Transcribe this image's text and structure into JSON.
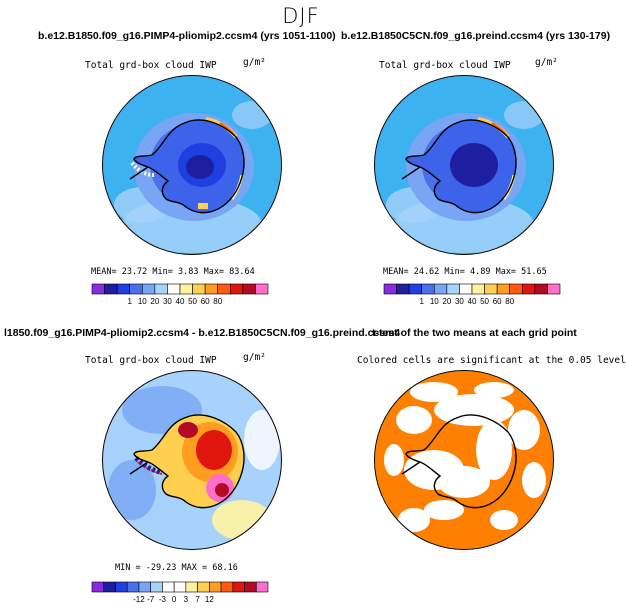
{
  "figure": {
    "title": "DJF"
  },
  "colors": {
    "ocean_bg": "#3db2f0",
    "land_low": "#1a3fe0",
    "tgrid_significant": "#ff7f00"
  },
  "panels": [
    {
      "id": "p1",
      "title": "b.e12.B1850.f09_g16.PIMP4-pliomip2.ccsm4 (yrs 1051-1100)",
      "left_label": "Total grd-box cloud IWP",
      "right_label": "g/m²",
      "stats": "MEAN=  23.72   Min=    3.83   Max=  83.64",
      "colorbar": "abs"
    },
    {
      "id": "p2",
      "title": "b.e12.B1850C5CN.f09_g16.preind.ccsm4 (yrs 130-179)",
      "left_label": "Total grd-box cloud IWP",
      "right_label": "g/m²",
      "stats": "MEAN=  24.62   Min=    4.89   Max=  51.65",
      "colorbar": "abs"
    },
    {
      "id": "p3",
      "title": "l1850.f09_g16.PIMP4-pliomip2.ccsm4 - b.e12.B1850C5CN.f09_g16.preind.ccsm4",
      "left_label": "Total grd-box cloud IWP",
      "right_label": "g/m²",
      "stats": "MIN = -29.23  MAX =   68.16",
      "colorbar": "diff"
    },
    {
      "id": "p4",
      "title": "t-test of the two means at each grid point",
      "left_label": "Colored cells are significant at the 0.05 level",
      "right_label": ""
    }
  ],
  "chart_data": [
    {
      "type": "heatmap",
      "title": "b.e12.B1850.f09_g16.PIMP4-pliomip2.ccsm4 (yrs 1051-1100)",
      "variable": "Total grd-box cloud IWP",
      "units": "g/m²",
      "projection": "south polar stereographic",
      "mean": 23.72,
      "min": 3.83,
      "max": 83.64,
      "colorbar_levels": [
        "1",
        "10",
        "20",
        "30",
        "40",
        "50",
        "60",
        "80"
      ]
    },
    {
      "type": "heatmap",
      "title": "b.e12.B1850C5CN.f09_g16.preind.ccsm4 (yrs 130-179)",
      "variable": "Total grd-box cloud IWP",
      "units": "g/m²",
      "projection": "south polar stereographic",
      "mean": 24.62,
      "min": 4.89,
      "max": 51.65,
      "colorbar_levels": [
        "1",
        "10",
        "20",
        "30",
        "40",
        "50",
        "60",
        "80"
      ]
    },
    {
      "type": "heatmap",
      "title": "l1850.f09_g16.PIMP4-pliomip2.ccsm4 - b.e12.B1850C5CN.f09_g16.preind.ccsm4",
      "variable": "Total grd-box cloud IWP",
      "units": "g/m²",
      "projection": "south polar stereographic",
      "min": -29.23,
      "max": 68.16,
      "colorbar_levels": [
        "-12",
        "-7",
        "-3",
        "0",
        "3",
        "7",
        "12"
      ]
    },
    {
      "type": "heatmap",
      "title": "t-test of the two means at each grid point",
      "note": "Colored cells are significant at the 0.05 level",
      "significance_level": 0.05,
      "projection": "south polar stereographic"
    }
  ],
  "colorbars": {
    "abs": {
      "colors": [
        "#8a2be2",
        "#1e1ea0",
        "#1f3fe0",
        "#4a70ee",
        "#78a6f5",
        "#a6d2fb",
        "#ffffff",
        "#fff3a0",
        "#ffd050",
        "#ff9d20",
        "#ff5a10",
        "#e0150c",
        "#b40a25",
        "#ff6ec8"
      ],
      "labels": [
        "1",
        "10",
        "20",
        "30",
        "40",
        "50",
        "60",
        "80"
      ]
    },
    "diff": {
      "colors": [
        "#8a2be2",
        "#1e1ea0",
        "#1f3fe0",
        "#4a70ee",
        "#78a6f5",
        "#a6d2fb",
        "#ffffff",
        "#ffffff",
        "#fff3a0",
        "#ffd050",
        "#ff9d20",
        "#ff5a10",
        "#e0150c",
        "#b40a25",
        "#ff6ec8"
      ],
      "labels": [
        "-12",
        "-7",
        "-3",
        "0",
        "3",
        "7",
        "12"
      ]
    }
  }
}
